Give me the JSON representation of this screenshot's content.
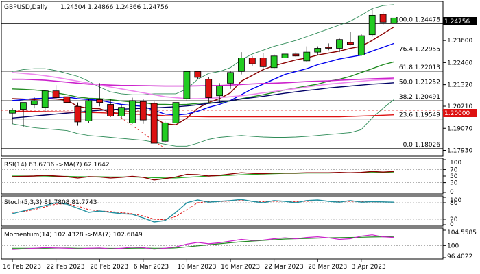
{
  "header": {
    "symbol": "GBPUSD,Daily",
    "ohlc": "1.24504 1.24866 1.24366 1.24756"
  },
  "price_axis": {
    "current_price_label": "1.24756",
    "level_label": "1.20000",
    "ticks": [
      "1.23600",
      "1.22460",
      "1.21320",
      "1.20210",
      "1.19070",
      "1.17930"
    ]
  },
  "indicators": {
    "rsi": {
      "title": "RSI(14) 63.6736 ->MA(7) 62.1642",
      "ticks": [
        "100",
        "70",
        "50",
        "30",
        "0"
      ]
    },
    "stoch": {
      "title": "Stoch(5,3,3) 81.7808 81.7743",
      "ticks": [
        "100",
        "80",
        "20",
        "0"
      ]
    },
    "momentum": {
      "title": "Momentum(14) 102.4328 ->MA(7) 102.6849",
      "ticks": [
        "104.5585",
        "100",
        "96.4022"
      ]
    }
  },
  "colors": {
    "bull": "#22cc22",
    "bear": "#dd1111",
    "ma_darkred": "#8b0000",
    "ma_blue": "#0000ee",
    "ma_green": "#228b22",
    "ma_navy": "#000066",
    "ma_magenta": "#cc22cc",
    "ma_pink": "#ee88ee",
    "ma_red": "#dd1111",
    "bollinger": "#2e8b57",
    "fib_line": "#000000",
    "rsi_line": "#8b0000",
    "rsi_ma": "#22aa22",
    "stoch_main": "#2090a0",
    "stoch_signal": "#dd1111",
    "momentum_line": "#cc22cc",
    "momentum_ma": "#228b22"
  },
  "chart_data": [
    {
      "type": "candlestick",
      "title": "GBPUSD,Daily",
      "x_tick_labels": [
        "16 Feb 2023",
        "22 Feb 2023",
        "28 Feb 2023",
        "6 Mar 2023",
        "10 Mar 2023",
        "16 Mar 2023",
        "22 Mar 2023",
        "28 Mar 2023",
        "3 Apr 2023"
      ],
      "y_range": [
        1.177,
        1.2555
      ],
      "candles": [
        {
          "o": 1.1985,
          "h": 1.201,
          "l": 1.193,
          "c": 1.2
        },
        {
          "o": 1.2005,
          "h": 1.204,
          "l": 1.1915,
          "c": 1.204
        },
        {
          "o": 1.203,
          "h": 1.207,
          "l": 1.201,
          "c": 1.205
        },
        {
          "o": 1.2015,
          "h": 1.21,
          "l": 1.199,
          "c": 1.21
        },
        {
          "o": 1.21,
          "h": 1.213,
          "l": 1.206,
          "c": 1.2065
        },
        {
          "o": 1.207,
          "h": 1.2085,
          "l": 1.203,
          "c": 1.204
        },
        {
          "o": 1.202,
          "h": 1.204,
          "l": 1.192,
          "c": 1.194
        },
        {
          "o": 1.1945,
          "h": 1.206,
          "l": 1.1935,
          "c": 1.205
        },
        {
          "o": 1.2055,
          "h": 1.214,
          "l": 1.202,
          "c": 1.204
        },
        {
          "o": 1.203,
          "h": 1.206,
          "l": 1.1965,
          "c": 1.197
        },
        {
          "o": 1.197,
          "h": 1.203,
          "l": 1.196,
          "c": 1.2015
        },
        {
          "o": 1.1935,
          "h": 1.2065,
          "l": 1.193,
          "c": 1.205
        },
        {
          "o": 1.2045,
          "h": 1.206,
          "l": 1.193,
          "c": 1.195
        },
        {
          "o": 1.2035,
          "h": 1.2045,
          "l": 1.183,
          "c": 1.183
        },
        {
          "o": 1.184,
          "h": 1.1945,
          "l": 1.183,
          "c": 1.1935
        },
        {
          "o": 1.1935,
          "h": 1.208,
          "l": 1.1915,
          "c": 1.204
        },
        {
          "o": 1.206,
          "h": 1.22,
          "l": 1.205,
          "c": 1.22
        },
        {
          "o": 1.22,
          "h": 1.2205,
          "l": 1.216,
          "c": 1.217
        },
        {
          "o": 1.216,
          "h": 1.217,
          "l": 1.204,
          "c": 1.2065
        },
        {
          "o": 1.2075,
          "h": 1.214,
          "l": 1.204,
          "c": 1.2125
        },
        {
          "o": 1.214,
          "h": 1.22,
          "l": 1.211,
          "c": 1.2195
        },
        {
          "o": 1.22,
          "h": 1.23,
          "l": 1.2185,
          "c": 1.227
        },
        {
          "o": 1.227,
          "h": 1.228,
          "l": 1.223,
          "c": 1.224
        },
        {
          "o": 1.227,
          "h": 1.2295,
          "l": 1.2205,
          "c": 1.2225
        },
        {
          "o": 1.222,
          "h": 1.229,
          "l": 1.221,
          "c": 1.228
        },
        {
          "o": 1.227,
          "h": 1.234,
          "l": 1.226,
          "c": 1.229
        },
        {
          "o": 1.229,
          "h": 1.23,
          "l": 1.2275,
          "c": 1.228
        },
        {
          "o": 1.2255,
          "h": 1.233,
          "l": 1.225,
          "c": 1.23
        },
        {
          "o": 1.23,
          "h": 1.233,
          "l": 1.2285,
          "c": 1.232
        },
        {
          "o": 1.2325,
          "h": 1.2345,
          "l": 1.231,
          "c": 1.232
        },
        {
          "o": 1.232,
          "h": 1.237,
          "l": 1.23,
          "c": 1.2365
        },
        {
          "o": 1.235,
          "h": 1.2405,
          "l": 1.2335,
          "c": 1.234
        },
        {
          "o": 1.2285,
          "h": 1.2395,
          "l": 1.228,
          "c": 1.2385
        },
        {
          "o": 1.239,
          "h": 1.2525,
          "l": 1.238,
          "c": 1.249
        },
        {
          "o": 1.2495,
          "h": 1.251,
          "l": 1.244,
          "c": 1.2455
        },
        {
          "o": 1.245,
          "h": 1.2487,
          "l": 1.2437,
          "c": 1.2476
        }
      ],
      "fibonacci": [
        {
          "label": "100.0 1.24478",
          "value": 1.24478
        },
        {
          "label": "76.4 1.22955",
          "value": 1.22955
        },
        {
          "label": "61.8 1.22013",
          "value": 1.22013
        },
        {
          "label": "50.0 1.21252",
          "value": 1.21252
        },
        {
          "label": "38.2 1.20491",
          "value": 1.20491
        },
        {
          "label": "23.6 1.19549",
          "value": 1.19549
        },
        {
          "label": "0.0 1.18026",
          "value": 1.18026
        }
      ],
      "horizontal_level": 1.2,
      "moving_averages": [
        {
          "color_key": "ma_darkred",
          "values": [
            1.206,
            1.2058,
            1.2055,
            1.206,
            1.2058,
            1.2052,
            1.202,
            1.201,
            1.2008,
            1.199,
            1.199,
            1.1995,
            1.199,
            1.196,
            1.193,
            1.1925,
            1.196,
            1.201,
            1.204,
            1.206,
            1.209,
            1.215,
            1.218,
            1.221,
            1.223,
            1.2245,
            1.226,
            1.227,
            1.2285,
            1.2295,
            1.2305,
            1.232,
            1.233,
            1.236,
            1.2395,
            1.243
          ]
        },
        {
          "color_key": "ma_blue",
          "values": [
            1.205,
            1.2055,
            1.206,
            1.2062,
            1.2065,
            1.2068,
            1.206,
            1.2055,
            1.2052,
            1.204,
            1.203,
            1.2025,
            1.202,
            1.2,
            1.198,
            1.1975,
            1.198,
            1.1995,
            1.2015,
            1.203,
            1.205,
            1.208,
            1.211,
            1.2135,
            1.216,
            1.2185,
            1.22,
            1.2215,
            1.2235,
            1.225,
            1.2265,
            1.2275,
            1.2285,
            1.2305,
            1.2325,
            1.2345
          ]
        },
        {
          "color_key": "ma_green",
          "values": [
            1.211,
            1.2108,
            1.2105,
            1.21,
            1.209,
            1.208,
            1.2068,
            1.2062,
            1.206,
            1.2055,
            1.2048,
            1.2042,
            1.204,
            1.203,
            1.203,
            1.2028,
            1.203,
            1.2035,
            1.2038,
            1.204,
            1.2048,
            1.206,
            1.207,
            1.208,
            1.2092,
            1.2105,
            1.2115,
            1.2125,
            1.2135,
            1.215,
            1.216,
            1.2175,
            1.2195,
            1.2215,
            1.2235,
            1.225
          ]
        },
        {
          "color_key": "ma_navy",
          "values": [
            1.196,
            1.1965,
            1.197,
            1.1975,
            1.198,
            1.1985,
            1.199,
            1.1995,
            1.2,
            1.2003,
            1.2006,
            1.2008,
            1.201,
            1.2012,
            1.2015,
            1.2018,
            1.2022,
            1.2028,
            1.2035,
            1.2042,
            1.205,
            1.2058,
            1.2065,
            1.2072,
            1.208,
            1.2088,
            1.2095,
            1.2102,
            1.2108,
            1.2115,
            1.212,
            1.2125,
            1.213,
            1.2135,
            1.2138,
            1.2142
          ]
        },
        {
          "color_key": "ma_magenta",
          "values": [
            1.216,
            1.216,
            1.2158,
            1.2155,
            1.215,
            1.2145,
            1.214,
            1.2135,
            1.2132,
            1.213,
            1.2128,
            1.2128,
            1.2127,
            1.2126,
            1.2125,
            1.2125,
            1.2125,
            1.2126,
            1.2127,
            1.2128,
            1.213,
            1.2133,
            1.2136,
            1.2138,
            1.214,
            1.2142,
            1.2145,
            1.2148,
            1.215,
            1.2152,
            1.2155,
            1.2158,
            1.216,
            1.2162,
            1.2164,
            1.2166
          ]
        },
        {
          "color_key": "ma_pink",
          "values": [
            1.2195,
            1.219,
            1.2185,
            1.2178,
            1.217,
            1.216,
            1.215,
            1.214,
            1.213,
            1.212,
            1.211,
            1.21,
            1.209,
            1.208,
            1.207,
            1.2065,
            1.206,
            1.206,
            1.2062,
            1.2065,
            1.207,
            1.2075,
            1.2082,
            1.209,
            1.2097,
            1.2105,
            1.2112,
            1.212,
            1.2128,
            1.2135,
            1.214,
            1.2145,
            1.215,
            1.2155,
            1.2158,
            1.216
          ]
        },
        {
          "color_key": "ma_red",
          "values": [
            1.1995,
            1.1995,
            1.1994,
            1.1993,
            1.1992,
            1.1991,
            1.199,
            1.1988,
            1.1987,
            1.1985,
            1.1983,
            1.198,
            1.1978,
            1.1975,
            1.1972,
            1.197,
            1.1968,
            1.1967,
            1.1966,
            1.1966,
            1.1966,
            1.1966,
            1.1966,
            1.1966,
            1.1966,
            1.1966,
            1.1966,
            1.1966,
            1.1966,
            1.1966,
            1.1966,
            1.1968,
            1.197,
            1.1972,
            1.1974,
            1.1976
          ]
        }
      ],
      "bollinger_upper": [
        1.22,
        1.221,
        1.2215,
        1.2215,
        1.2205,
        1.219,
        1.2175,
        1.215,
        1.212,
        1.2095,
        1.2085,
        1.208,
        1.208,
        1.2085,
        1.2085,
        1.2085,
        1.211,
        1.216,
        1.219,
        1.22,
        1.222,
        1.226,
        1.229,
        1.231,
        1.233,
        1.2345,
        1.236,
        1.238,
        1.24,
        1.242,
        1.244,
        1.246,
        1.249,
        1.2525,
        1.254,
        1.2545
      ],
      "bollinger_lower": [
        1.193,
        1.192,
        1.191,
        1.1905,
        1.19,
        1.1895,
        1.188,
        1.187,
        1.1865,
        1.186,
        1.1855,
        1.185,
        1.1845,
        1.1835,
        1.1825,
        1.1815,
        1.1815,
        1.183,
        1.185,
        1.186,
        1.1865,
        1.187,
        1.1865,
        1.1862,
        1.186,
        1.186,
        1.1862,
        1.1865,
        1.187,
        1.1875,
        1.188,
        1.1885,
        1.19,
        1.196,
        1.201,
        1.2055
      ]
    },
    {
      "type": "line",
      "title": "RSI(14) 63.6736 ->MA(7) 62.1642",
      "y_range": [
        0,
        100
      ],
      "levels": [
        70,
        30
      ],
      "series": [
        {
          "name": "RSI(14)",
          "values": [
            48,
            49,
            50,
            52,
            50,
            48,
            44,
            48,
            47,
            44,
            46,
            49,
            46,
            38,
            42,
            47,
            55,
            54,
            50,
            52,
            56,
            60,
            58,
            57,
            59,
            59,
            59,
            60,
            60,
            60,
            61,
            60,
            61,
            64,
            62,
            64
          ]
        },
        {
          "name": "MA(7)",
          "values": [
            50,
            50,
            50,
            50,
            49,
            49,
            48,
            48,
            48,
            47,
            47,
            47,
            46,
            45,
            44,
            44,
            46,
            48,
            50,
            51,
            52,
            54,
            55,
            56,
            57,
            58,
            58,
            59,
            59,
            59,
            60,
            60,
            60,
            61,
            61,
            62
          ]
        }
      ]
    },
    {
      "type": "line",
      "title": "Stoch(5,3,3) 81.7808 81.7743",
      "y_range": [
        0,
        100
      ],
      "levels": [
        80,
        20
      ],
      "series": [
        {
          "name": "main",
          "values": [
            40,
            50,
            60,
            70,
            80,
            75,
            60,
            45,
            50,
            45,
            40,
            38,
            25,
            10,
            15,
            45,
            80,
            90,
            82,
            85,
            88,
            92,
            85,
            80,
            88,
            85,
            80,
            88,
            90,
            85,
            82,
            88,
            82,
            84,
            83,
            82
          ]
        },
        {
          "name": "signal",
          "values": [
            45,
            48,
            55,
            65,
            75,
            76,
            68,
            55,
            50,
            48,
            44,
            40,
            32,
            20,
            18,
            30,
            55,
            80,
            85,
            84,
            86,
            88,
            86,
            84,
            85,
            85,
            84,
            85,
            87,
            86,
            84,
            85,
            84,
            83,
            83,
            82
          ]
        }
      ]
    },
    {
      "type": "line",
      "title": "Momentum(14) 102.4328 ->MA(7) 102.6849",
      "y_range": [
        96.4022,
        104.5585
      ],
      "series": [
        {
          "name": "Momentum(14)",
          "values": [
            98.8,
            99.0,
            99.2,
            99.4,
            99.3,
            99.2,
            99.0,
            99.2,
            99.3,
            99.0,
            99.2,
            99.5,
            99.4,
            98.9,
            99.2,
            99.6,
            100.4,
            100.9,
            100.5,
            100.8,
            101.3,
            101.8,
            101.5,
            101.6,
            102.0,
            102.3,
            102.0,
            102.4,
            102.6,
            102.3,
            101.8,
            102.0,
            102.8,
            103.2,
            102.6,
            102.4
          ]
        },
        {
          "name": "MA(7)",
          "values": [
            99.2,
            99.2,
            99.2,
            99.2,
            99.25,
            99.25,
            99.2,
            99.2,
            99.2,
            99.15,
            99.15,
            99.2,
            99.25,
            99.2,
            99.2,
            99.3,
            99.6,
            99.9,
            100.2,
            100.5,
            100.8,
            101.1,
            101.3,
            101.5,
            101.7,
            101.9,
            102.0,
            102.1,
            102.2,
            102.3,
            102.35,
            102.4,
            102.45,
            102.55,
            102.6,
            102.68
          ]
        }
      ]
    }
  ]
}
